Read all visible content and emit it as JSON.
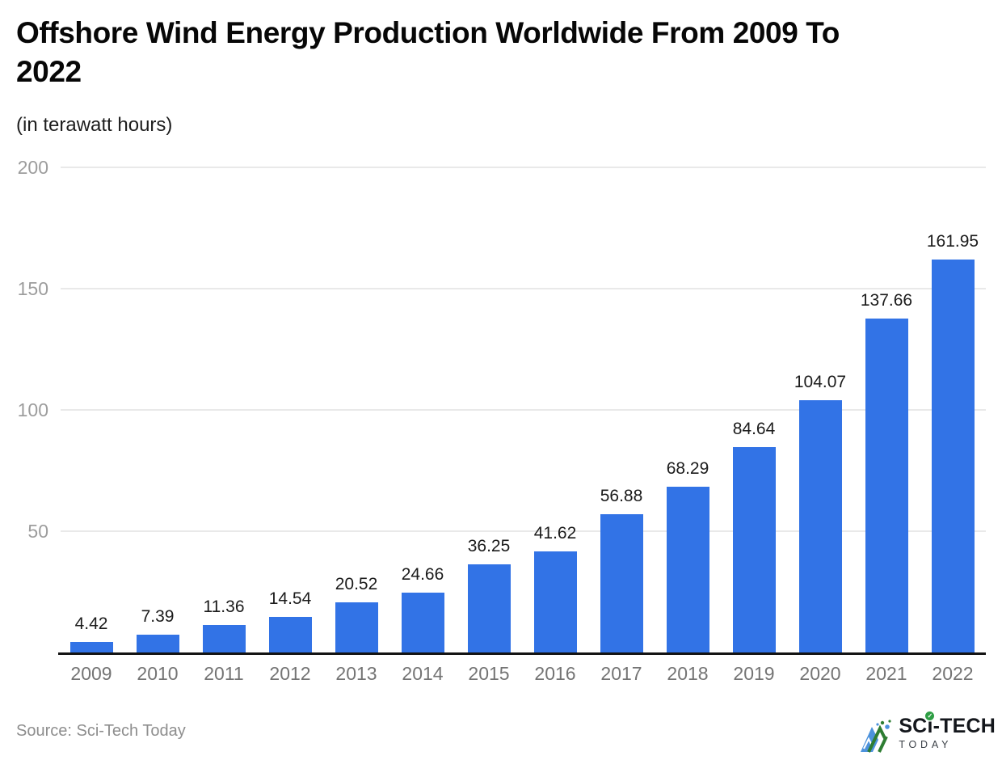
{
  "page": {
    "title_line1": "Offshore Wind Energy Production Worldwide From 2009 To",
    "title_line2": "2022",
    "subtitle": "(in terawatt hours)",
    "source": "Source: Sci-Tech Today"
  },
  "logo": {
    "part1": "SC",
    "part2": "i",
    "part3": "-TECH",
    "check": "✓",
    "subtext": "TODAY"
  },
  "chart_data": {
    "type": "bar",
    "title": "Offshore Wind Energy Production Worldwide From 2009 To 2022",
    "subtitle": "(in terawatt hours)",
    "categories": [
      "2009",
      "2010",
      "2011",
      "2012",
      "2013",
      "2014",
      "2015",
      "2016",
      "2017",
      "2018",
      "2019",
      "2020",
      "2021",
      "2022"
    ],
    "values": [
      4.42,
      7.39,
      11.36,
      14.54,
      20.52,
      24.66,
      36.25,
      41.62,
      56.88,
      68.29,
      84.64,
      104.07,
      137.66,
      161.95
    ],
    "value_labels": [
      "4.42",
      "7.39",
      "11.36",
      "14.54",
      "20.52",
      "24.66",
      "36.25",
      "41.62",
      "56.88",
      "68.29",
      "84.64",
      "104.07",
      "137.66",
      "161.95"
    ],
    "xlabel": "",
    "ylabel": "",
    "ylim": [
      0,
      200
    ],
    "yticks": [
      200,
      150,
      100,
      50
    ],
    "grid": true,
    "legend": false,
    "bar_color": "#3273e6",
    "gridline_color": "#e9e9e9",
    "axis_line_color": "#131313",
    "source": "Source: Sci-Tech Today"
  }
}
